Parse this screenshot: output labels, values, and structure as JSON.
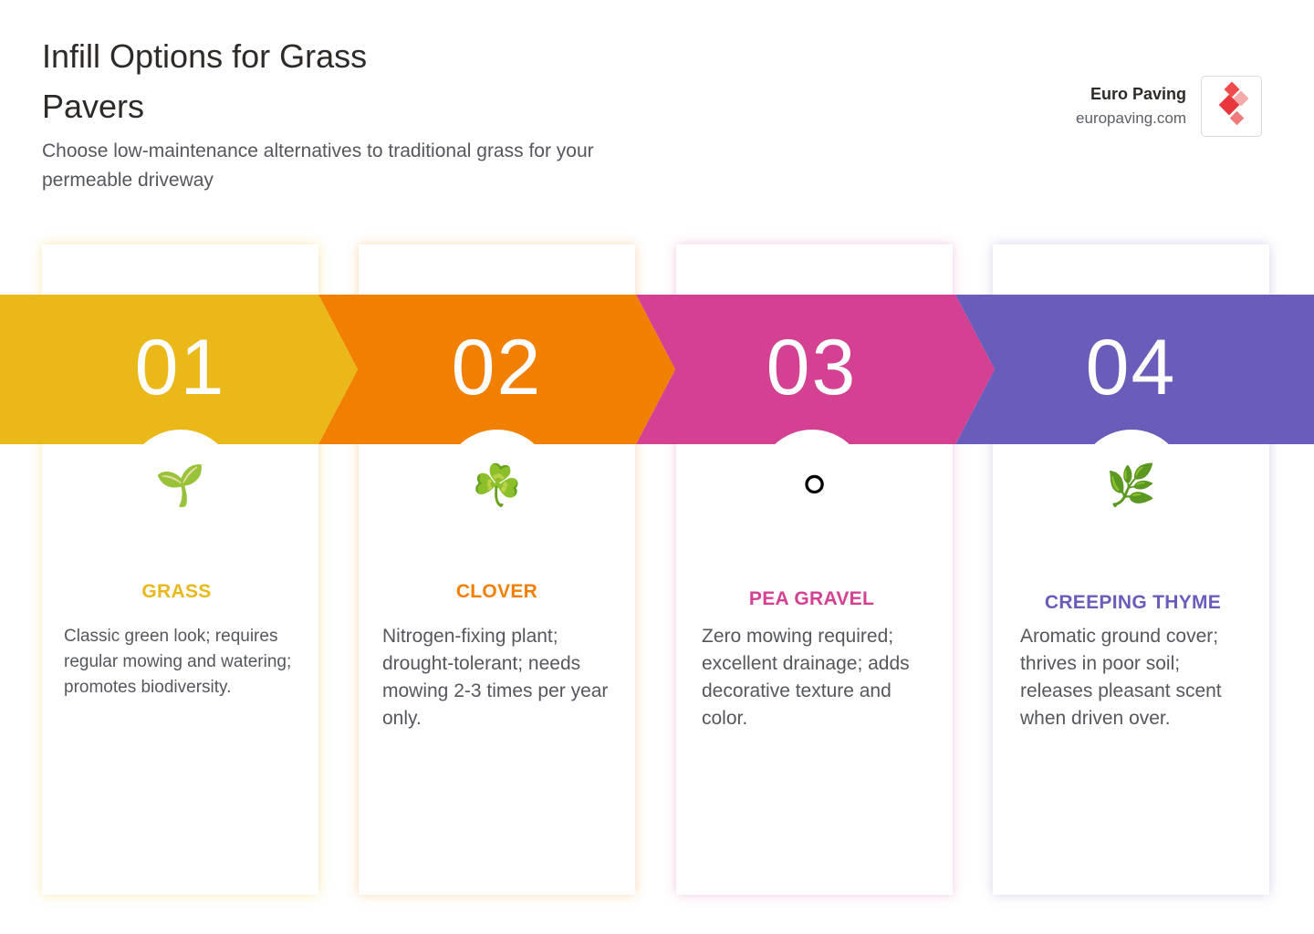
{
  "header": {
    "title": "Infill Options for Grass Pavers",
    "subtitle": "Choose low-maintenance alternatives to traditional grass for your permeable driveway"
  },
  "brand": {
    "name": "Euro Paving",
    "url": "europaving.com"
  },
  "options": [
    {
      "number": "01",
      "title": "GRASS",
      "description": "Classic green look; requires regular mowing and watering; promotes biodiversity.",
      "icon": "🌱",
      "icon_name": "seedling-icon",
      "color": "#ebb81a"
    },
    {
      "number": "02",
      "title": "CLOVER",
      "description": "Nitrogen-fixing plant; drought-tolerant; needs mowing 2-3 times per year only.",
      "icon": "☘️",
      "icon_name": "shamrock-icon",
      "color": "#f28000"
    },
    {
      "number": "03",
      "title": "PEA GRAVEL",
      "description": "Zero mowing required; excellent drainage; adds decorative texture and color.",
      "icon": "⚪",
      "icon_name": "white-circle-icon",
      "color": "#d44192"
    },
    {
      "number": "04",
      "title": "CREEPING THYME",
      "description": "Aromatic ground cover; thrives in poor soil; releases pleasant scent when driven over.",
      "icon": "🌿",
      "icon_name": "herb-icon",
      "color": "#6a5cbb"
    }
  ]
}
